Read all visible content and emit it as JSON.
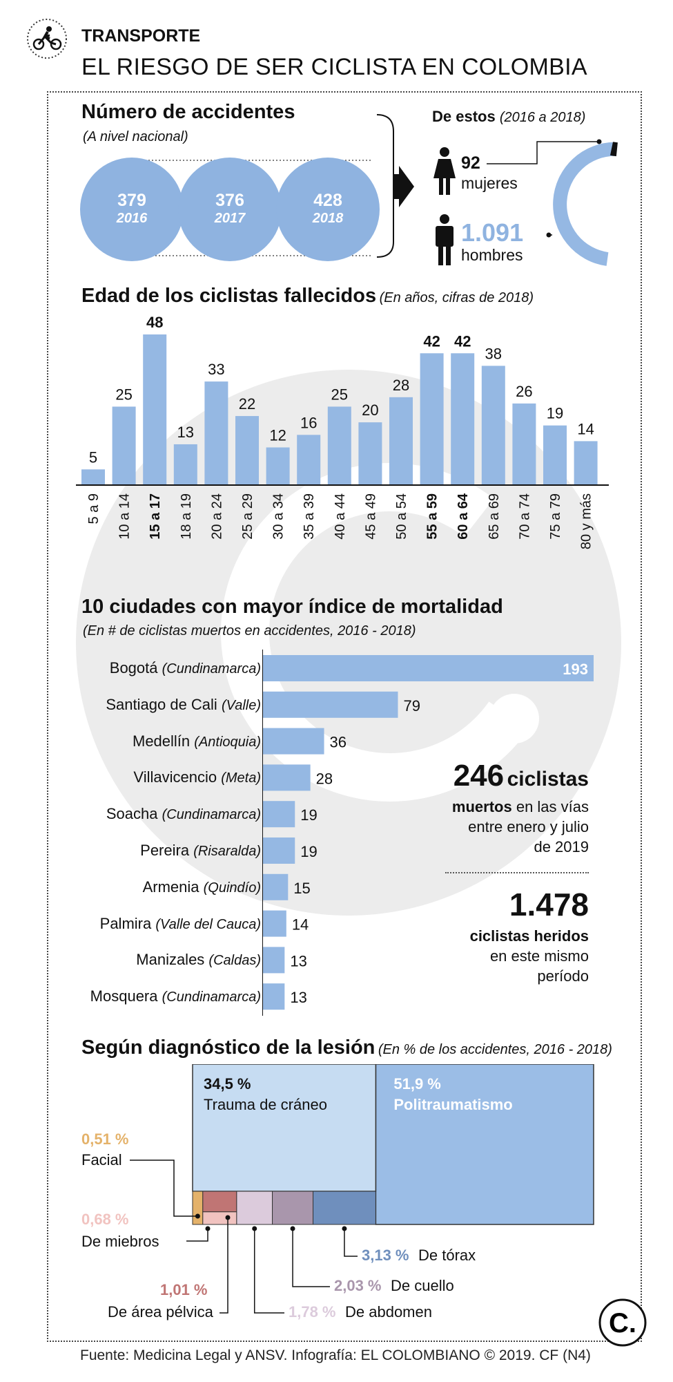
{
  "header": {
    "section": "TRANSPORTE",
    "title": "EL RIESGO DE SER CICLISTA EN COLOMBIA"
  },
  "colors": {
    "accent": "#8fb3e0",
    "bar": "#95b8e3",
    "text": "#111111"
  },
  "icons": {
    "header": "cyclist-icon",
    "women": "woman-icon",
    "men": "man-icon",
    "logo": "el-colombiano-logo"
  },
  "accidents": {
    "title": "Número de accidentes",
    "subtitle": "(A nivel nacional)",
    "years": [
      {
        "value": "379",
        "year": "2016"
      },
      {
        "value": "376",
        "year": "2017"
      },
      {
        "value": "428",
        "year": "2018"
      }
    ]
  },
  "gender": {
    "title": "De estos",
    "period": "(2016 a 2018)",
    "women_value": "92",
    "women_label": "mujeres",
    "men_value": "1.091",
    "men_label": "hombres"
  },
  "chart_data": [
    {
      "type": "bar",
      "title": "Edad de los ciclistas fallecidos",
      "subtitle": "(En años, cifras de 2018)",
      "categories": [
        "5 a 9",
        "10 a 14",
        "15 a 17",
        "18 a 19",
        "20 a 24",
        "25 a 29",
        "30 a 34",
        "35 a 39",
        "40 a 44",
        "45 a 49",
        "50 a 54",
        "55 a 59",
        "60 a 64",
        "65 a 69",
        "70 a 74",
        "75 a 79",
        "80 y más"
      ],
      "values": [
        5,
        25,
        48,
        13,
        33,
        22,
        12,
        16,
        25,
        20,
        28,
        42,
        42,
        38,
        26,
        19,
        14
      ],
      "highlighted": [
        "15 a 17",
        "55 a 59",
        "60 a 64"
      ],
      "ylim": [
        0,
        48
      ],
      "grid": false
    },
    {
      "type": "bar",
      "orientation": "horizontal",
      "title": "10 ciudades con mayor índice de mortalidad",
      "subtitle": "(En # de ciclistas muertos en accidentes, 2016 - 2018)",
      "categories": [
        {
          "city": "Bogotá",
          "province": "(Cundinamarca)"
        },
        {
          "city": "Santiago de Cali",
          "province": "(Valle)"
        },
        {
          "city": "Medellín",
          "province": "(Antioquia)"
        },
        {
          "city": "Villavicencio",
          "province": "(Meta)"
        },
        {
          "city": "Soacha",
          "province": "(Cundinamarca)"
        },
        {
          "city": "Pereira",
          "province": "(Risaralda)"
        },
        {
          "city": "Armenia",
          "province": "(Quindío)"
        },
        {
          "city": "Palmira",
          "province": "(Valle del Cauca)"
        },
        {
          "city": "Manizales",
          "province": "(Caldas)"
        },
        {
          "city": "Mosquera",
          "province": "(Cundinamarca)"
        }
      ],
      "values": [
        193,
        79,
        36,
        28,
        19,
        19,
        15,
        14,
        13,
        13
      ],
      "xlim": [
        0,
        193
      ]
    },
    {
      "type": "treemap",
      "title": "Según diagnóstico de la lesión",
      "subtitle": "(En % de los accidentes, 2016 - 2018)",
      "items": [
        {
          "label": "Politraumatismo",
          "pct": "51,9 %",
          "value": 51.9,
          "color": "#9bbde6"
        },
        {
          "label": "Trauma de cráneo",
          "pct": "34,5 %",
          "value": 34.5,
          "color": "#c6dcf2"
        },
        {
          "label": "De tórax",
          "pct": "3,13 %",
          "value": 3.13,
          "color": "#6f8fbd"
        },
        {
          "label": "De cuello",
          "pct": "2,03 %",
          "value": 2.03,
          "color": "#a996ac"
        },
        {
          "label": "De abdomen",
          "pct": "1,78 %",
          "value": 1.78,
          "color": "#dccbdc"
        },
        {
          "label": "De área pélvica",
          "pct": "1,01 %",
          "value": 1.01,
          "color": "#c07574"
        },
        {
          "label": "De miebros",
          "pct": "0,68 %",
          "value": 0.68,
          "color": "#f1c3c0"
        },
        {
          "label": "Facial",
          "pct": "0,51 %",
          "value": 0.51,
          "color": "#e4b26a"
        }
      ]
    }
  ],
  "stats": {
    "dead_value": "246",
    "dead_word": "ciclistas",
    "dead_line1_bold": "muertos",
    "dead_line1_rest": " en las vías",
    "dead_line2": "entre enero y julio",
    "dead_line3": "de 2019",
    "injured_value": "1.478",
    "injured_line1": "ciclistas heridos",
    "injured_line2": "en este mismo",
    "injured_line3": "período"
  },
  "footer": {
    "source": "Fuente: Medicina Legal y ANSV. Infografía: EL COLOMBIANO © 2019. CF (N4)",
    "logo_text": "C."
  }
}
